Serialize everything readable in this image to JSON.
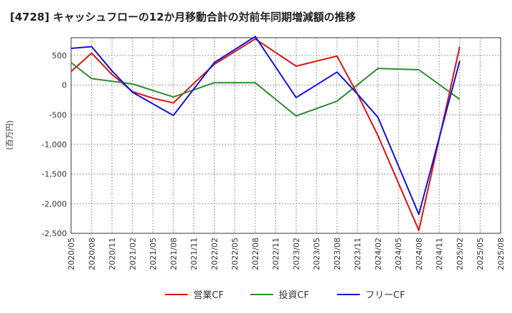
{
  "chart_data": {
    "type": "line",
    "title": "[4728]  キャッシュフローの12か月移動合計の対前年同期増減額の推移",
    "ylabel": "(百万円)",
    "xlabel": "",
    "ylim": [
      -2500,
      800
    ],
    "yticks": [
      500,
      0,
      -500,
      -1000,
      -1500,
      -2000,
      -2500
    ],
    "ytick_labels": [
      "500",
      "0",
      "-500",
      "-1,000",
      "-1,500",
      "-2,000",
      "-2,500"
    ],
    "categories": [
      "2020/05",
      "2020/08",
      "2020/11",
      "2021/02",
      "2021/05",
      "2021/08",
      "2021/11",
      "2022/02",
      "2022/05",
      "2022/08",
      "2022/11",
      "2023/02",
      "2023/05",
      "2023/08",
      "2023/11",
      "2024/02",
      "2024/05",
      "2024/08",
      "2024/11",
      "2025/02",
      "2025/05",
      "2025/08"
    ],
    "grid": true,
    "legend_position": "bottom",
    "series": [
      {
        "name": "営業CF",
        "color": "#dd1111",
        "values": [
          230,
          540,
          180,
          -110,
          -220,
          -300,
          30,
          350,
          null,
          780,
          null,
          320,
          null,
          490,
          -150,
          -850,
          null,
          -2450,
          null,
          650,
          null,
          null
        ]
      },
      {
        "name": "投資CF",
        "color": "#2e8b2e",
        "values": [
          380,
          110,
          null,
          20,
          null,
          -200,
          null,
          40,
          null,
          40,
          null,
          -520,
          null,
          -270,
          null,
          280,
          null,
          260,
          null,
          -240,
          null,
          null
        ]
      },
      {
        "name": "フリーCF",
        "color": "#1111dd",
        "values": [
          620,
          650,
          240,
          -120,
          null,
          -510,
          null,
          380,
          null,
          820,
          null,
          -210,
          null,
          220,
          -150,
          -540,
          null,
          -2180,
          null,
          410,
          null,
          null
        ]
      }
    ]
  }
}
